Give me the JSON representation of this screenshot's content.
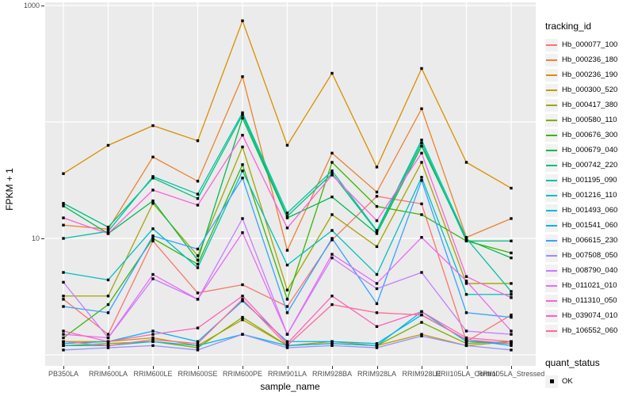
{
  "figure": {
    "y_axis": {
      "title": "FPKM + 1"
    },
    "x_axis": {
      "title": "sample_name"
    },
    "legend": {
      "tracking_title": "tracking_id",
      "quant_title": "quant_status",
      "quant_entries": [
        {
          "label": "OK",
          "shape": "black-square"
        }
      ]
    }
  },
  "chart_data": {
    "type": "line",
    "x_type": "categorical",
    "y_scale": "log10",
    "ylabel": "FPKM + 1",
    "xlabel": "sample_name",
    "ylim": [
      1,
      1000
    ],
    "y_tick_labels": [
      {
        "value": 1000,
        "label": "1000"
      },
      {
        "value": 10,
        "label": "10"
      }
    ],
    "gridline_values": [
      1000,
      100,
      10,
      1
    ],
    "grid": "major-white-on-gray",
    "legend_position": "right",
    "point_shape": "black-square",
    "panel_background": "#EBEBEB",
    "categories": [
      "PB350LA",
      "RRIM600LA",
      "RRIM600LE",
      "RRIM600SE",
      "RRIM600PE",
      "RRIM901LA",
      "RRIM928BA",
      "RRIM928LA",
      "RRIM928LE",
      "RRII105LA_Control",
      "RRII105LA_Stressed"
    ],
    "series": [
      {
        "name": "Hb_000077_100",
        "color": "#F8766D",
        "quant_status": "OK",
        "values": [
          3.0,
          1.5,
          9.5,
          3.4,
          4.0,
          2.6,
          9.7,
          23,
          19.8,
          1.3,
          2.2
        ]
      },
      {
        "name": "Hb_000236_180",
        "color": "#EA8331",
        "quant_status": "OK",
        "values": [
          13,
          12,
          50,
          31,
          245,
          7.9,
          54,
          25,
          130,
          10.2,
          14.8
        ]
      },
      {
        "name": "Hb_000236_190",
        "color": "#D89000",
        "quant_status": "OK",
        "values": [
          36,
          63,
          93,
          69,
          740,
          63,
          262,
          41,
          288,
          45,
          27
        ]
      },
      {
        "name": "Hb_000300_520",
        "color": "#C09B00",
        "quant_status": "OK",
        "values": [
          1.3,
          1.3,
          1.4,
          1.2,
          2.0,
          1.2,
          1.3,
          1.2,
          1.5,
          1.2,
          1.3
        ]
      },
      {
        "name": "Hb_000417_380",
        "color": "#A3A500",
        "quant_status": "OK",
        "values": [
          3.2,
          3.2,
          20,
          7.1,
          61,
          3.6,
          16,
          8.5,
          45,
          4.1,
          4.1
        ]
      },
      {
        "name": "Hb_000580_110",
        "color": "#7CAE00",
        "quant_status": "OK",
        "values": [
          1.2,
          1.25,
          1.3,
          1.15,
          2.1,
          1.2,
          1.25,
          1.2,
          1.9,
          1.25,
          1.3
        ]
      },
      {
        "name": "Hb_000676_300",
        "color": "#39B600",
        "quant_status": "OK",
        "values": [
          1.4,
          2.7,
          10,
          6.0,
          43,
          3.0,
          45,
          18.8,
          16,
          9.5,
          7.5
        ]
      },
      {
        "name": "Hb_000679_040",
        "color": "#00BB4E",
        "quant_status": "OK",
        "values": [
          19,
          11,
          21,
          6.5,
          108,
          15,
          22.7,
          11,
          62,
          9.8,
          6.8
        ]
      },
      {
        "name": "Hb_000742_220",
        "color": "#00BF7D",
        "quant_status": "OK",
        "values": [
          20,
          12.5,
          33,
          22,
          115,
          15.5,
          36,
          11.5,
          66,
          9.5,
          9.5
        ]
      },
      {
        "name": "Hb_001195_090",
        "color": "#00C1A3",
        "quant_status": "OK",
        "values": [
          10,
          11.5,
          34,
          24,
          120,
          16.5,
          38,
          11.7,
          70,
          10.0,
          3.5
        ]
      },
      {
        "name": "Hb_001216_110",
        "color": "#00BFC4",
        "quant_status": "OK",
        "values": [
          5.1,
          4.4,
          12.1,
          5.6,
          38,
          5.9,
          11.7,
          4.9,
          33.5,
          3.3,
          3.3
        ]
      },
      {
        "name": "Hb_001493_060",
        "color": "#00BAE0",
        "quant_status": "OK",
        "values": [
          1.2,
          1.2,
          1.3,
          1.2,
          1.5,
          1.2,
          1.25,
          1.2,
          2.35,
          1.3,
          1.25
        ]
      },
      {
        "name": "Hb_001541_060",
        "color": "#00B0F6",
        "quant_status": "OK",
        "values": [
          1.25,
          1.3,
          1.6,
          1.3,
          2.9,
          1.3,
          1.3,
          1.25,
          2.2,
          1.35,
          1.2
        ]
      },
      {
        "name": "Hb_006615_230",
        "color": "#35A2FF",
        "quant_status": "OK",
        "values": [
          2.6,
          2.3,
          10.5,
          8.1,
          33,
          2.3,
          10,
          2.75,
          31.5,
          2.3,
          2.1
        ]
      },
      {
        "name": "Hb_007508_050",
        "color": "#9590FF",
        "quant_status": "OK",
        "values": [
          1.1,
          1.15,
          1.2,
          1.1,
          1.5,
          1.15,
          1.2,
          1.15,
          1.45,
          1.2,
          1.1
        ]
      },
      {
        "name": "Hb_008790_040",
        "color": "#C77CFF",
        "quant_status": "OK",
        "values": [
          4.2,
          1.4,
          4.5,
          3.0,
          14.8,
          1.5,
          6.8,
          3.7,
          5.1,
          1.6,
          1.5
        ]
      },
      {
        "name": "Hb_011021_010",
        "color": "#E76BF3",
        "quant_status": "OK",
        "values": [
          1.5,
          1.4,
          4.9,
          3.0,
          11.2,
          1.5,
          7.3,
          4.1,
          10.2,
          4.3,
          1.6
        ]
      },
      {
        "name": "Hb_011310_050",
        "color": "#FA62DB",
        "quant_status": "OK",
        "values": [
          15,
          11,
          26,
          19.3,
          77,
          12.3,
          35,
          14.2,
          54,
          4.7,
          3.1
        ]
      },
      {
        "name": "Hb_039074_010",
        "color": "#FF62BC",
        "quant_status": "OK",
        "values": [
          1.6,
          1.3,
          1.5,
          1.7,
          3.2,
          1.25,
          3.2,
          1.75,
          2.35,
          1.4,
          1.3
        ]
      },
      {
        "name": "Hb_106552_060",
        "color": "#FF6A98",
        "quant_status": "OK",
        "values": [
          1.3,
          1.2,
          1.35,
          1.25,
          3.0,
          1.2,
          2.7,
          2.3,
          2.2,
          1.35,
          1.25
        ]
      }
    ]
  }
}
